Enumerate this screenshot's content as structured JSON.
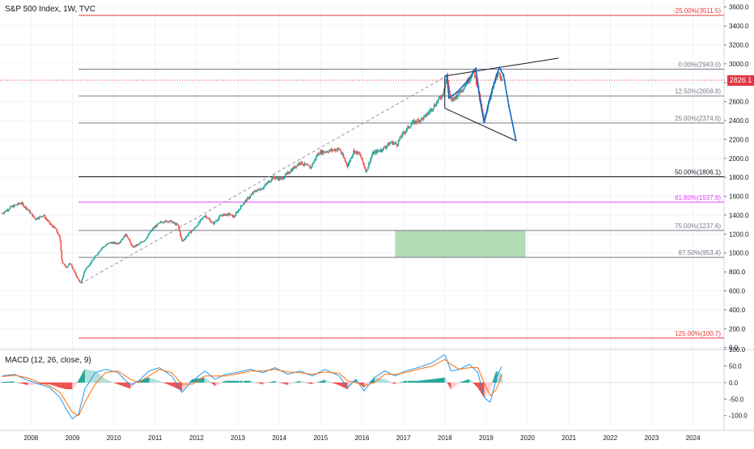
{
  "chart_data": {
    "type": "candlestick",
    "title": "S&P 500 Index, 1W, TVC",
    "last_price": "2826.1",
    "price_axis": {
      "ticks": [
        "3600.0",
        "3400.0",
        "3200.0",
        "3000.0",
        "2800.0",
        "2600.0",
        "2400.0",
        "2200.0",
        "2000.0",
        "1800.0",
        "1600.0",
        "1400.0",
        "1200.0",
        "1000.0",
        "800.0",
        "600.0",
        "400.0",
        "200.0",
        "0.0"
      ],
      "range": [
        -20,
        3640
      ]
    },
    "time_axis": {
      "ticks": [
        "2008",
        "2009",
        "2010",
        "2011",
        "2012",
        "2013",
        "2014",
        "2015",
        "2016",
        "2017",
        "2018",
        "2019",
        "2020",
        "2021",
        "2022",
        "2023",
        "2024"
      ],
      "range": [
        2007.25,
        2024.75
      ]
    },
    "price_path": [
      [
        2007.3,
        1420
      ],
      [
        2007.5,
        1480
      ],
      [
        2007.75,
        1530
      ],
      [
        2007.9,
        1470
      ],
      [
        2008.1,
        1360
      ],
      [
        2008.3,
        1400
      ],
      [
        2008.45,
        1310
      ],
      [
        2008.6,
        1250
      ],
      [
        2008.7,
        1150
      ],
      [
        2008.75,
        900
      ],
      [
        2008.85,
        850
      ],
      [
        2008.95,
        890
      ],
      [
        2009.1,
        750
      ],
      [
        2009.2,
        676
      ],
      [
        2009.3,
        820
      ],
      [
        2009.5,
        930
      ],
      [
        2009.7,
        1050
      ],
      [
        2009.9,
        1110
      ],
      [
        2010.1,
        1100
      ],
      [
        2010.3,
        1200
      ],
      [
        2010.45,
        1060
      ],
      [
        2010.6,
        1090
      ],
      [
        2010.75,
        1140
      ],
      [
        2010.95,
        1260
      ],
      [
        2011.15,
        1330
      ],
      [
        2011.35,
        1340
      ],
      [
        2011.55,
        1290
      ],
      [
        2011.65,
        1120
      ],
      [
        2011.8,
        1200
      ],
      [
        2011.95,
        1260
      ],
      [
        2012.2,
        1400
      ],
      [
        2012.4,
        1310
      ],
      [
        2012.6,
        1400
      ],
      [
        2012.8,
        1410
      ],
      [
        2012.9,
        1380
      ],
      [
        2013.1,
        1510
      ],
      [
        2013.4,
        1650
      ],
      [
        2013.6,
        1690
      ],
      [
        2013.85,
        1800
      ],
      [
        2014.05,
        1780
      ],
      [
        2014.3,
        1880
      ],
      [
        2014.5,
        1960
      ],
      [
        2014.75,
        1900
      ],
      [
        2014.95,
        2060
      ],
      [
        2015.2,
        2080
      ],
      [
        2015.45,
        2100
      ],
      [
        2015.65,
        1920
      ],
      [
        2015.8,
        2080
      ],
      [
        2015.95,
        2040
      ],
      [
        2016.1,
        1860
      ],
      [
        2016.25,
        2050
      ],
      [
        2016.5,
        2100
      ],
      [
        2016.7,
        2170
      ],
      [
        2016.85,
        2150
      ],
      [
        2016.95,
        2240
      ],
      [
        2017.2,
        2370
      ],
      [
        2017.5,
        2430
      ],
      [
        2017.75,
        2560
      ],
      [
        2017.95,
        2680
      ],
      [
        2018.05,
        2870
      ],
      [
        2018.15,
        2600
      ],
      [
        2018.3,
        2670
      ],
      [
        2018.5,
        2780
      ],
      [
        2018.7,
        2920
      ],
      [
        2018.8,
        2750
      ],
      [
        2018.95,
        2380
      ],
      [
        2019.05,
        2590
      ],
      [
        2019.2,
        2800
      ],
      [
        2019.3,
        2900
      ],
      [
        2019.38,
        2826.1
      ]
    ],
    "fib_levels": [
      {
        "label": "-25.00%(3511.5)",
        "value": 3511.5,
        "color": "#e53935"
      },
      {
        "label": "0.00%(2943.0)",
        "value": 2943.0,
        "color": "#787b86"
      },
      {
        "label": "12.50%(2658.8)",
        "value": 2658.8,
        "color": "#787b86"
      },
      {
        "label": "25.00%(2374.6)",
        "value": 2374.6,
        "color": "#787b86"
      },
      {
        "label": "50.00%(1806.1)",
        "value": 1806.1,
        "color": "#131722"
      },
      {
        "label": "61.80%(1537.8)",
        "value": 1537.8,
        "color": "#e040fb"
      },
      {
        "label": "75.00%(1237.6)",
        "value": 1237.6,
        "color": "#787b86"
      },
      {
        "label": "87.50%(953.4)",
        "value": 953.4,
        "color": "#787b86"
      },
      {
        "label": "125.00%(100.7)",
        "value": 100.7,
        "color": "#e53935"
      }
    ],
    "fib_start_date": 2009.15,
    "trend_line": {
      "from": [
        2009.2,
        676
      ],
      "to": [
        2018.05,
        2872
      ]
    },
    "target_zone": {
      "x": [
        2016.8,
        2019.95
      ],
      "y": [
        953.4,
        1237.6
      ],
      "color": "#a5d6a7"
    },
    "wedge": {
      "upper": [
        [
          2018.0,
          2870
        ],
        [
          2020.75,
          3060
        ]
      ],
      "lower": [
        [
          2018.0,
          2530
        ],
        [
          2019.7,
          2190
        ]
      ]
    },
    "projection": [
      [
        2018.05,
        2880
      ],
      [
        2018.1,
        2640
      ],
      [
        2018.3,
        2700
      ],
      [
        2018.55,
        2820
      ],
      [
        2018.75,
        2950
      ],
      [
        2018.85,
        2620
      ],
      [
        2018.95,
        2380
      ],
      [
        2019.1,
        2650
      ],
      [
        2019.25,
        2880
      ],
      [
        2019.32,
        2960
      ],
      [
        2019.42,
        2880
      ],
      [
        2019.55,
        2550
      ],
      [
        2019.72,
        2190
      ]
    ],
    "macd": {
      "title": "MACD (12, 26, close, 9)",
      "ticks": [
        "100.0",
        "50.0",
        "0.0",
        "-50.0",
        "-100.0"
      ],
      "range": [
        -130,
        100
      ],
      "dates": [
        2007.3,
        2007.6,
        2007.9,
        2008.2,
        2008.45,
        2008.7,
        2008.85,
        2009.0,
        2009.15,
        2009.3,
        2009.55,
        2009.8,
        2010.1,
        2010.4,
        2010.6,
        2010.85,
        2011.1,
        2011.4,
        2011.65,
        2011.9,
        2012.2,
        2012.45,
        2012.7,
        2012.95,
        2013.3,
        2013.6,
        2013.9,
        2014.2,
        2014.5,
        2014.8,
        2015.1,
        2015.45,
        2015.65,
        2015.85,
        2016.05,
        2016.3,
        2016.55,
        2016.8,
        2017.05,
        2017.35,
        2017.7,
        2018.0,
        2018.15,
        2018.35,
        2018.6,
        2018.8,
        2018.95,
        2019.1,
        2019.25,
        2019.38
      ],
      "macd": [
        20,
        25,
        8,
        -5,
        -15,
        -45,
        -80,
        -110,
        -95,
        -20,
        30,
        40,
        30,
        -8,
        5,
        35,
        45,
        20,
        -30,
        5,
        35,
        10,
        25,
        30,
        40,
        30,
        45,
        25,
        35,
        20,
        40,
        20,
        -15,
        10,
        -25,
        15,
        35,
        20,
        35,
        45,
        60,
        85,
        35,
        40,
        55,
        30,
        -45,
        -60,
        15,
        50
      ],
      "signal": [
        18,
        22,
        15,
        0,
        -10,
        -30,
        -60,
        -90,
        -100,
        -60,
        -5,
        30,
        35,
        10,
        0,
        20,
        40,
        30,
        -5,
        -5,
        20,
        20,
        20,
        25,
        35,
        35,
        40,
        32,
        30,
        25,
        32,
        28,
        5,
        0,
        -10,
        0,
        25,
        25,
        30,
        40,
        50,
        70,
        55,
        40,
        45,
        45,
        0,
        -40,
        -20,
        25
      ]
    }
  }
}
